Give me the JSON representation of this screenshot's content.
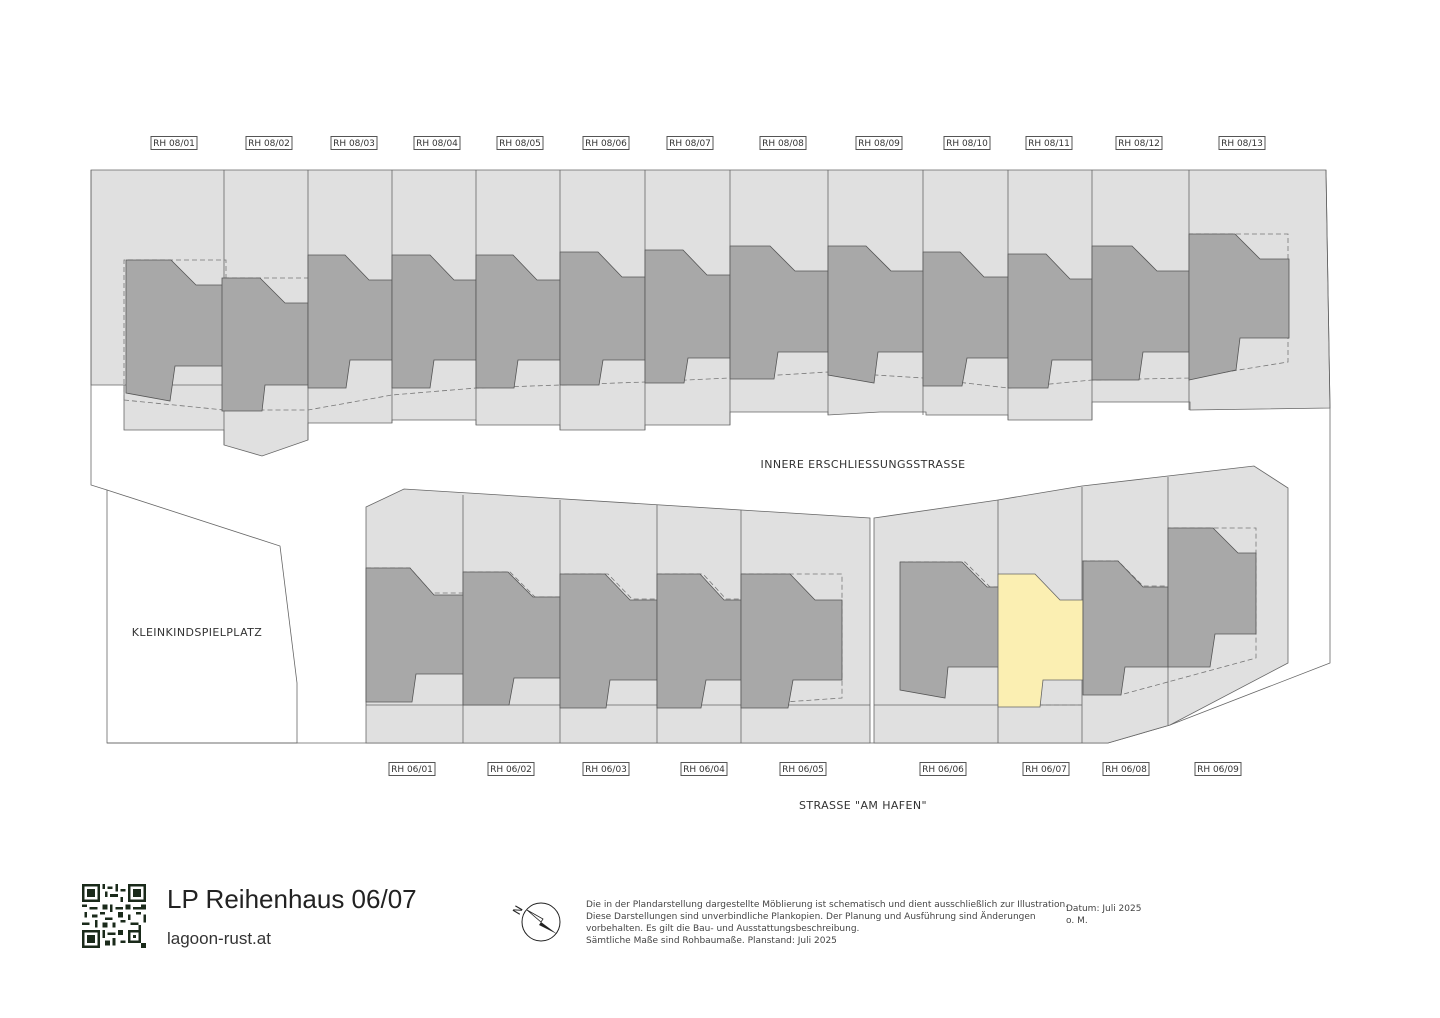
{
  "plan": {
    "road_inner": "INNERE ERSCHLIESSUNGSSTRASSE",
    "road_outer": "STRASSE \"AM HAFEN\"",
    "playground": "KLEINKINDSPIELPLATZ",
    "north_units": [
      "RH 08/01",
      "RH 08/02",
      "RH 08/03",
      "RH 08/04",
      "RH 08/05",
      "RH 08/06",
      "RH 08/07",
      "RH 08/08",
      "RH 08/09",
      "RH 08/10",
      "RH 08/11",
      "RH 08/12",
      "RH 08/13"
    ],
    "south_units": [
      "RH 06/01",
      "RH 06/02",
      "RH 06/03",
      "RH 06/04",
      "RH 06/05",
      "RH 06/06",
      "RH 06/07",
      "RH 06/08",
      "RH 06/09"
    ],
    "highlighted_unit": "RH 06/07"
  },
  "colors": {
    "plot": "#e0e0e0",
    "building": "#a8a8a8",
    "highlight": "#fbefb2",
    "outline": "#555555"
  },
  "footer": {
    "title": "LP Reihenhaus 06/07",
    "website": "lagoon-rust.at",
    "compass_letter": "N",
    "disclaimer_lines": [
      "Die in der Plandarstellung dargestellte Möblierung ist schematisch und dient ausschließlich zur Illustration.",
      "Diese Darstellungen sind unverbindliche Plankopien. Der Planung und Ausführung sind Änderungen",
      "vorbehalten. Es gilt die Bau- und Ausstattungsbeschreibung.",
      "Sämtliche Maße sind Rohbaumaße. Planstand: Juli 2025"
    ],
    "date": "Datum: Juli 2025",
    "scale": "o. M."
  }
}
